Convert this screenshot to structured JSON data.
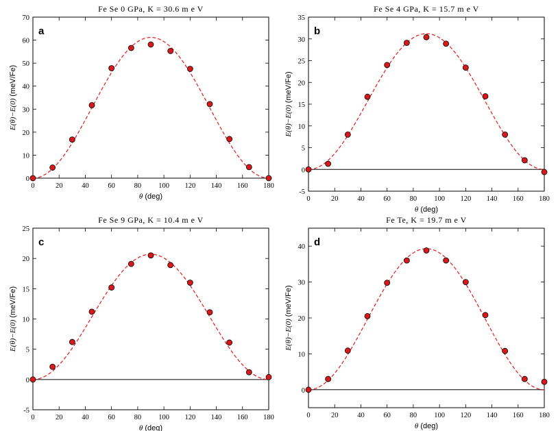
{
  "chart_data": [
    {
      "type": "scatter",
      "panel_letter": "a",
      "title": "Fe Se  0 GPa,  K =  30.6  m e V",
      "xlabel_var": "θ",
      "xlabel_unit": "(deg)",
      "ylabel_math": "E(θ)−E(0)",
      "ylabel_unit": "(meV/Fe)",
      "xlim": [
        0,
        180
      ],
      "ylim": [
        0,
        70
      ],
      "xticks": [
        0,
        20,
        40,
        60,
        80,
        100,
        120,
        140,
        160,
        180
      ],
      "yticks": [
        0,
        10,
        20,
        30,
        40,
        50,
        60,
        70
      ],
      "fit": {
        "style": "dashed",
        "color": "#e41a1c",
        "amplitude": 61.2
      },
      "baseline": 0,
      "x": [
        0,
        15,
        30,
        45,
        60,
        75,
        90,
        105,
        120,
        135,
        150,
        165,
        180
      ],
      "y": [
        0,
        4.6,
        16.8,
        31.7,
        47.8,
        56.6,
        58.1,
        55.3,
        47.5,
        32.2,
        17.0,
        4.8,
        0
      ]
    },
    {
      "type": "scatter",
      "panel_letter": "b",
      "title": "Fe Se  4 GPa,  K =  15.7  m e V",
      "xlabel_var": "θ",
      "xlabel_unit": "(deg)",
      "ylabel_math": "E(θ)−E(0)",
      "ylabel_unit": "(meV/Fe)",
      "xlim": [
        0,
        180
      ],
      "ylim": [
        -5,
        35
      ],
      "xticks": [
        0,
        20,
        40,
        60,
        80,
        100,
        120,
        140,
        160,
        180
      ],
      "yticks": [
        -5,
        0,
        5,
        10,
        15,
        20,
        25,
        30,
        35
      ],
      "fit": {
        "style": "dashed",
        "color": "#e41a1c",
        "amplitude": 31.2
      },
      "baseline": 0,
      "x": [
        0,
        15,
        30,
        45,
        60,
        75,
        90,
        105,
        120,
        135,
        150,
        165,
        180
      ],
      "y": [
        0,
        1.3,
        8.0,
        16.7,
        24.0,
        29.1,
        30.4,
        28.9,
        23.4,
        16.8,
        8.0,
        2.1,
        -0.6
      ]
    },
    {
      "type": "scatter",
      "panel_letter": "c",
      "title": "Fe Se  9 GPa,  K =  10.4  m e V",
      "xlabel_var": "θ",
      "xlabel_unit": "(deg)",
      "ylabel_math": "E(θ)−E(0)",
      "ylabel_unit": "(meV/Fe)",
      "xlim": [
        0,
        180
      ],
      "ylim": [
        -5,
        25
      ],
      "xticks": [
        0,
        20,
        40,
        60,
        80,
        100,
        120,
        140,
        160,
        180
      ],
      "yticks": [
        -5,
        0,
        5,
        10,
        15,
        20,
        25
      ],
      "fit": {
        "style": "dashed",
        "color": "#e41a1c",
        "amplitude": 20.7
      },
      "baseline": 0,
      "x": [
        0,
        15,
        30,
        45,
        60,
        75,
        90,
        105,
        120,
        135,
        150,
        165,
        180
      ],
      "y": [
        0,
        2.1,
        6.2,
        11.2,
        15.2,
        19.1,
        20.5,
        18.9,
        16.0,
        11.1,
        6.1,
        1.2,
        0.4
      ]
    },
    {
      "type": "scatter",
      "panel_letter": "d",
      "title": "Fe Te,  K =  19.7  m e V",
      "xlabel_var": "θ",
      "xlabel_unit": "(deg)",
      "ylabel_math": "E(θ)−E(0)",
      "ylabel_unit": "(meV/Fe)",
      "xlim": [
        0,
        180
      ],
      "ylim": [
        -5,
        45
      ],
      "xticks": [
        0,
        20,
        40,
        60,
        80,
        100,
        120,
        140,
        160,
        180
      ],
      "yticks": [
        0,
        10,
        20,
        30,
        40
      ],
      "fit": {
        "style": "dashed",
        "color": "#e41a1c",
        "amplitude": 39.3
      },
      "baseline": 0,
      "x": [
        0,
        15,
        30,
        45,
        60,
        75,
        90,
        105,
        120,
        135,
        150,
        165,
        180
      ],
      "y": [
        0,
        3.0,
        10.9,
        20.5,
        29.8,
        36.0,
        38.8,
        36.0,
        30.0,
        20.8,
        10.8,
        3.0,
        2.2
      ]
    }
  ]
}
